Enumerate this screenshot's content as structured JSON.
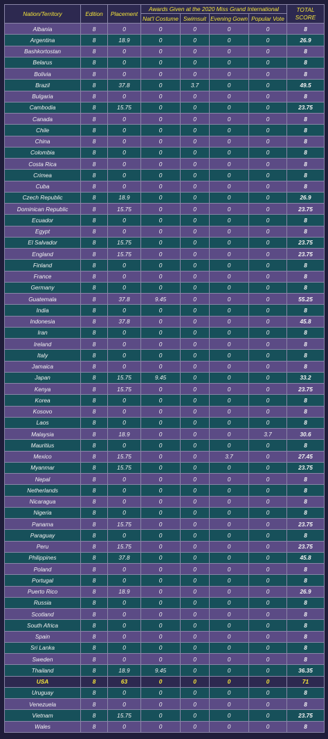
{
  "headers": {
    "nation": "Nation/Territory",
    "edition": "Edition",
    "placement": "Placement",
    "awards_group": "Awards Given at the 2020 Miss Grand International",
    "costume": "Nat'l Costume",
    "swimsuit": "Swimsuit",
    "gown": "Evening Gown",
    "popular": "Popular Vote",
    "total": "TOTAL SCORE"
  },
  "rows": [
    [
      "Albania",
      "8",
      "0",
      "0",
      "0",
      "0",
      "0",
      "8"
    ],
    [
      "Argentina",
      "8",
      "18.9",
      "0",
      "0",
      "0",
      "0",
      "26.9"
    ],
    [
      "Bashkortostan",
      "8",
      "0",
      "0",
      "0",
      "0",
      "0",
      "8"
    ],
    [
      "Belarus",
      "8",
      "0",
      "0",
      "0",
      "0",
      "0",
      "8"
    ],
    [
      "Bolivia",
      "8",
      "0",
      "0",
      "0",
      "0",
      "0",
      "8"
    ],
    [
      "Brazil",
      "8",
      "37.8",
      "0",
      "3.7",
      "0",
      "0",
      "49.5"
    ],
    [
      "Bulgaria",
      "8",
      "0",
      "0",
      "0",
      "0",
      "0",
      "8"
    ],
    [
      "Cambodia",
      "8",
      "15.75",
      "0",
      "0",
      "0",
      "0",
      "23.75"
    ],
    [
      "Canada",
      "8",
      "0",
      "0",
      "0",
      "0",
      "0",
      "8"
    ],
    [
      "Chile",
      "8",
      "0",
      "0",
      "0",
      "0",
      "0",
      "8"
    ],
    [
      "China",
      "8",
      "0",
      "0",
      "0",
      "0",
      "0",
      "8"
    ],
    [
      "Colombia",
      "8",
      "0",
      "0",
      "0",
      "0",
      "0",
      "8"
    ],
    [
      "Costa Rica",
      "8",
      "0",
      "0",
      "0",
      "0",
      "0",
      "8"
    ],
    [
      "Crimea",
      "8",
      "0",
      "0",
      "0",
      "0",
      "0",
      "8"
    ],
    [
      "Cuba",
      "8",
      "0",
      "0",
      "0",
      "0",
      "0",
      "8"
    ],
    [
      "Czech Republic",
      "8",
      "18.9",
      "0",
      "0",
      "0",
      "0",
      "26.9"
    ],
    [
      "Dominican Republic",
      "8",
      "15.75",
      "0",
      "0",
      "0",
      "0",
      "23.75"
    ],
    [
      "Ecuador",
      "8",
      "0",
      "0",
      "0",
      "0",
      "0",
      "8"
    ],
    [
      "Egypt",
      "8",
      "0",
      "0",
      "0",
      "0",
      "0",
      "8"
    ],
    [
      "El Salvador",
      "8",
      "15.75",
      "0",
      "0",
      "0",
      "0",
      "23.75"
    ],
    [
      "England",
      "8",
      "15.75",
      "0",
      "0",
      "0",
      "0",
      "23.75"
    ],
    [
      "Finland",
      "8",
      "0",
      "0",
      "0",
      "0",
      "0",
      "8"
    ],
    [
      "France",
      "8",
      "0",
      "0",
      "0",
      "0",
      "0",
      "8"
    ],
    [
      "Germany",
      "8",
      "0",
      "0",
      "0",
      "0",
      "0",
      "8"
    ],
    [
      "Guatemala",
      "8",
      "37.8",
      "9.45",
      "0",
      "0",
      "0",
      "55.25"
    ],
    [
      "India",
      "8",
      "0",
      "0",
      "0",
      "0",
      "0",
      "8"
    ],
    [
      "Indonesia",
      "8",
      "37.8",
      "0",
      "0",
      "0",
      "0",
      "45.8"
    ],
    [
      "Iran",
      "8",
      "0",
      "0",
      "0",
      "0",
      "0",
      "8"
    ],
    [
      "Ireland",
      "8",
      "0",
      "0",
      "0",
      "0",
      "0",
      "8"
    ],
    [
      "Italy",
      "8",
      "0",
      "0",
      "0",
      "0",
      "0",
      "8"
    ],
    [
      "Jamaica",
      "8",
      "0",
      "0",
      "0",
      "0",
      "0",
      "8"
    ],
    [
      "Japan",
      "8",
      "15.75",
      "9.45",
      "0",
      "0",
      "0",
      "33.2"
    ],
    [
      "Kenya",
      "8",
      "15.75",
      "0",
      "0",
      "0",
      "0",
      "23.75"
    ],
    [
      "Korea",
      "8",
      "0",
      "0",
      "0",
      "0",
      "0",
      "8"
    ],
    [
      "Kosovo",
      "8",
      "0",
      "0",
      "0",
      "0",
      "0",
      "8"
    ],
    [
      "Laos",
      "8",
      "0",
      "0",
      "0",
      "0",
      "0",
      "8"
    ],
    [
      "Malaysia",
      "8",
      "18.9",
      "0",
      "0",
      "0",
      "3.7",
      "30.6"
    ],
    [
      "Mauritius",
      "8",
      "0",
      "0",
      "0",
      "0",
      "0",
      "8"
    ],
    [
      "Mexico",
      "8",
      "15.75",
      "0",
      "0",
      "3.7",
      "0",
      "27.45"
    ],
    [
      "Myanmar",
      "8",
      "15.75",
      "0",
      "0",
      "0",
      "0",
      "23.75"
    ],
    [
      "Nepal",
      "8",
      "0",
      "0",
      "0",
      "0",
      "0",
      "8"
    ],
    [
      "Netherlands",
      "8",
      "0",
      "0",
      "0",
      "0",
      "0",
      "8"
    ],
    [
      "Nicaragua",
      "8",
      "0",
      "0",
      "0",
      "0",
      "0",
      "8"
    ],
    [
      "Nigeria",
      "8",
      "0",
      "0",
      "0",
      "0",
      "0",
      "8"
    ],
    [
      "Panama",
      "8",
      "15.75",
      "0",
      "0",
      "0",
      "0",
      "23.75"
    ],
    [
      "Paraguay",
      "8",
      "0",
      "0",
      "0",
      "0",
      "0",
      "8"
    ],
    [
      "Peru",
      "8",
      "15.75",
      "0",
      "0",
      "0",
      "0",
      "23.75"
    ],
    [
      "Philippines",
      "8",
      "37.8",
      "0",
      "0",
      "0",
      "0",
      "45.8"
    ],
    [
      "Poland",
      "8",
      "0",
      "0",
      "0",
      "0",
      "0",
      "8"
    ],
    [
      "Portugal",
      "8",
      "0",
      "0",
      "0",
      "0",
      "0",
      "8"
    ],
    [
      "Puerto Rico",
      "8",
      "18.9",
      "0",
      "0",
      "0",
      "0",
      "26.9"
    ],
    [
      "Russia",
      "8",
      "0",
      "0",
      "0",
      "0",
      "0",
      "8"
    ],
    [
      "Scotland",
      "8",
      "0",
      "0",
      "0",
      "0",
      "0",
      "8"
    ],
    [
      "South Africa",
      "8",
      "0",
      "0",
      "0",
      "0",
      "0",
      "8"
    ],
    [
      "Spain",
      "8",
      "0",
      "0",
      "0",
      "0",
      "0",
      "8"
    ],
    [
      "Sri Lanka",
      "8",
      "0",
      "0",
      "0",
      "0",
      "0",
      "8"
    ],
    [
      "Sweden",
      "8",
      "0",
      "0",
      "0",
      "0",
      "0",
      "8"
    ],
    [
      "Thailand",
      "8",
      "18.9",
      "9.45",
      "0",
      "0",
      "0",
      "36.35"
    ],
    [
      "USA",
      "8",
      "63",
      "0",
      "0",
      "0",
      "0",
      "71"
    ],
    [
      "Uruguay",
      "8",
      "0",
      "0",
      "0",
      "0",
      "0",
      "8"
    ],
    [
      "Venezuela",
      "8",
      "0",
      "0",
      "0",
      "0",
      "0",
      "8"
    ],
    [
      "Vietnam",
      "8",
      "15.75",
      "0",
      "0",
      "0",
      "0",
      "23.75"
    ],
    [
      "Wales",
      "8",
      "0",
      "0",
      "0",
      "0",
      "0",
      "8"
    ]
  ],
  "highlight_row": "USA",
  "colors": {
    "header_bg": "#2d2950",
    "header_text": "#f5e53a",
    "row_purple": "#5b4b85",
    "row_teal": "#17505a",
    "highlight_text": "#f5e53a"
  }
}
